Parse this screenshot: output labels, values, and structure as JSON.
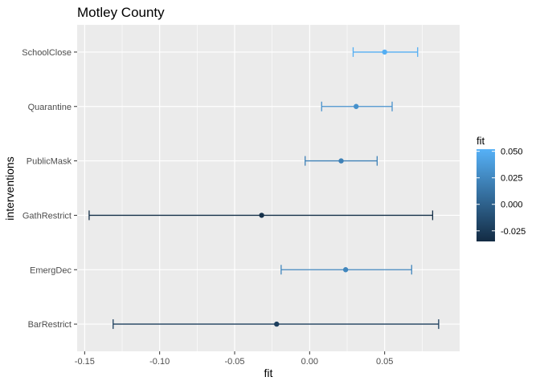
{
  "chart_data": {
    "type": "scatter",
    "title": "Motley County",
    "xlabel": "fit",
    "ylabel": "interventions",
    "xlim": [
      -0.155,
      0.1
    ],
    "x_ticks": [
      {
        "value": -0.15,
        "label": "-0.15"
      },
      {
        "value": -0.1,
        "label": "-0.10"
      },
      {
        "value": -0.05,
        "label": "-0.05"
      },
      {
        "value": 0.0,
        "label": "0.00"
      },
      {
        "value": 0.05,
        "label": "0.05"
      }
    ],
    "categories": [
      "SchoolClose",
      "Quarantine",
      "PublicMask",
      "GathRestrict",
      "EmergDec",
      "BarRestrict"
    ],
    "points": [
      {
        "category": "SchoolClose",
        "fit": 0.05,
        "lower": 0.029,
        "upper": 0.072
      },
      {
        "category": "Quarantine",
        "fit": 0.031,
        "lower": 0.008,
        "upper": 0.055
      },
      {
        "category": "PublicMask",
        "fit": 0.021,
        "lower": -0.003,
        "upper": 0.045
      },
      {
        "category": "GathRestrict",
        "fit": -0.032,
        "lower": -0.147,
        "upper": 0.082
      },
      {
        "category": "EmergDec",
        "fit": 0.024,
        "lower": -0.019,
        "upper": 0.068
      },
      {
        "category": "BarRestrict",
        "fit": -0.022,
        "lower": -0.131,
        "upper": 0.086
      }
    ],
    "grid": true,
    "legend": {
      "title": "fit",
      "position": "right",
      "type": "colorbar",
      "range": [
        -0.035,
        0.052
      ],
      "ticks": [
        {
          "value": 0.05,
          "label": "0.050"
        },
        {
          "value": 0.025,
          "label": "0.025"
        },
        {
          "value": 0.0,
          "label": "0.000"
        },
        {
          "value": -0.025,
          "label": "-0.025"
        }
      ],
      "color_low": "#132b43",
      "color_high": "#56b1f7"
    }
  }
}
